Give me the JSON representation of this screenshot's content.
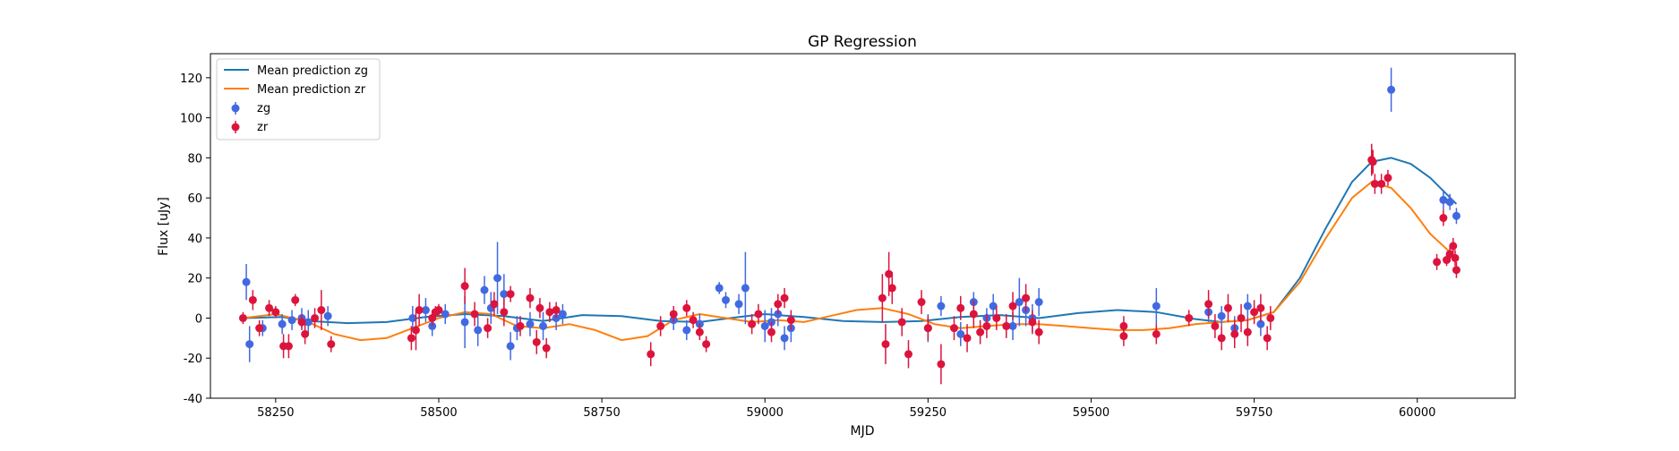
{
  "chart_data": {
    "type": "scatter",
    "title": "GP Regression",
    "xlabel": "MJD",
    "ylabel": "Flux [uJy]",
    "xlim": [
      58150,
      60150
    ],
    "ylim": [
      -40,
      132
    ],
    "xticks": [
      58250,
      58500,
      58750,
      59000,
      59250,
      59500,
      59750,
      60000
    ],
    "yticks": [
      -40,
      -20,
      0,
      20,
      40,
      60,
      80,
      100,
      120
    ],
    "grid": false,
    "legend_position": "top-left",
    "series": [
      {
        "name": "Mean prediction zg",
        "kind": "line",
        "color": "#1f77b4",
        "x": [
          58200,
          58260,
          58300,
          58360,
          58420,
          58480,
          58540,
          58600,
          58660,
          58720,
          58780,
          58840,
          58900,
          58960,
          59000,
          59060,
          59120,
          59180,
          59240,
          59300,
          59360,
          59420,
          59480,
          59540,
          59600,
          59660,
          59700,
          59740,
          59780,
          59820,
          59860,
          59900,
          59930,
          59960,
          59990,
          60020,
          60060
        ],
        "y": [
          0,
          0.5,
          -1.5,
          -2.5,
          -2,
          0.5,
          2,
          1,
          -1.5,
          1.5,
          1,
          -1.5,
          -2,
          0.5,
          2,
          0.5,
          -1.5,
          -2,
          -1.5,
          0.5,
          1.5,
          0,
          2.5,
          4,
          3,
          -0.5,
          -2,
          -1,
          3,
          20,
          45,
          68,
          78,
          80,
          77,
          70,
          57
        ]
      },
      {
        "name": "Mean prediction zr",
        "kind": "line",
        "color": "#ff7f0e",
        "x": [
          58200,
          58250,
          58300,
          58340,
          58380,
          58420,
          58460,
          58500,
          58540,
          58580,
          58620,
          58660,
          58700,
          58740,
          58780,
          58820,
          58860,
          58900,
          58940,
          58980,
          59020,
          59060,
          59100,
          59140,
          59180,
          59220,
          59260,
          59300,
          59340,
          59380,
          59420,
          59460,
          59500,
          59540,
          59580,
          59620,
          59660,
          59700,
          59740,
          59780,
          59820,
          59860,
          59900,
          59930,
          59960,
          59990,
          60020,
          60060
        ],
        "y": [
          0,
          2,
          -2,
          -8,
          -11,
          -10,
          -5,
          0,
          3,
          2,
          -4,
          -5,
          -3,
          -6,
          -11,
          -9,
          -1,
          2,
          0,
          -2,
          -1,
          -2,
          1,
          4,
          5,
          2,
          -3,
          -5,
          -4,
          -3,
          -3,
          -4,
          -5,
          -6,
          -6,
          -5,
          -3,
          -2,
          -1,
          3,
          18,
          40,
          60,
          68,
          65,
          55,
          42,
          30
        ]
      },
      {
        "name": "zg",
        "kind": "errorbar",
        "color": "#4169e1",
        "x": [
          58205,
          58210,
          58230,
          58260,
          58275,
          58290,
          58300,
          58330,
          58460,
          58480,
          58490,
          58510,
          58540,
          58560,
          58570,
          58580,
          58590,
          58600,
          58610,
          58620,
          58640,
          58660,
          58680,
          58690,
          58860,
          58880,
          58900,
          58930,
          58940,
          58960,
          58970,
          59000,
          59010,
          59020,
          59030,
          59040,
          59250,
          59270,
          59300,
          59320,
          59340,
          59350,
          59380,
          59390,
          59400,
          59410,
          59420,
          59600,
          59680,
          59700,
          59720,
          59740,
          59760,
          59960,
          60040,
          60050,
          60060
        ],
        "y": [
          18,
          -13,
          -5,
          -3,
          -1,
          0,
          -2,
          1,
          0,
          4,
          -4,
          2,
          -2,
          -6,
          14,
          5,
          20,
          12,
          -14,
          -5,
          -3,
          -4,
          0,
          2,
          -1,
          -6,
          -3,
          15,
          9,
          7,
          15,
          -4,
          -2,
          2,
          -10,
          -5,
          -5,
          6,
          -8,
          8,
          0,
          6,
          -4,
          8,
          4,
          0,
          8,
          6,
          3,
          1,
          -5,
          6,
          -3,
          114,
          59,
          58,
          51
        ],
        "err": [
          9,
          9,
          4,
          5,
          5,
          5,
          6,
          5,
          6,
          6,
          5,
          5,
          13,
          8,
          7,
          8,
          18,
          10,
          7,
          6,
          6,
          7,
          6,
          5,
          5,
          5,
          5,
          3,
          4,
          5,
          18,
          8,
          7,
          6,
          6,
          7,
          7,
          5,
          6,
          5,
          5,
          6,
          7,
          12,
          8,
          7,
          7,
          9,
          5,
          5,
          6,
          6,
          6,
          11,
          5,
          4,
          4
        ]
      },
      {
        "name": "zr",
        "kind": "errorbar",
        "color": "#dc143c",
        "x": [
          58200,
          58215,
          58225,
          58240,
          58250,
          58262,
          58270,
          58280,
          58290,
          58295,
          58310,
          58320,
          58335,
          58458,
          58465,
          58470,
          58490,
          58495,
          58500,
          58540,
          58555,
          58575,
          58585,
          58600,
          58610,
          58625,
          58640,
          58650,
          58655,
          58665,
          58670,
          58680,
          58825,
          58840,
          58860,
          58880,
          58890,
          58900,
          58910,
          58980,
          58990,
          59010,
          59020,
          59030,
          59040,
          59180,
          59185,
          59190,
          59195,
          59210,
          59220,
          59240,
          59250,
          59270,
          59290,
          59300,
          59310,
          59320,
          59330,
          59340,
          59355,
          59370,
          59380,
          59400,
          59410,
          59420,
          59550,
          59550,
          59600,
          59650,
          59680,
          59690,
          59700,
          59710,
          59720,
          59730,
          59740,
          59750,
          59760,
          59770,
          59775,
          59930,
          59932,
          59935,
          59945,
          59955,
          60030,
          60040,
          60045,
          60050,
          60055,
          60058,
          60060
        ],
        "y": [
          0,
          9,
          -5,
          5,
          3,
          -14,
          -14,
          9,
          -2,
          -8,
          0,
          4,
          -13,
          -10,
          -6,
          4,
          0,
          3,
          4,
          16,
          2,
          -5,
          7,
          3,
          12,
          -4,
          10,
          -12,
          5,
          -15,
          3,
          4,
          -18,
          -4,
          2,
          5,
          -1,
          -7,
          -13,
          -3,
          2,
          -7,
          7,
          10,
          -1,
          10,
          -13,
          22,
          15,
          -2,
          -18,
          8,
          -5,
          -23,
          -5,
          5,
          -10,
          2,
          -7,
          -4,
          0,
          -4,
          6,
          10,
          -2,
          -7,
          -4,
          -9,
          -8,
          0,
          7,
          -4,
          -10,
          5,
          -8,
          0,
          -7,
          3,
          5,
          -10,
          0,
          79,
          78,
          67,
          67,
          70,
          28,
          50,
          29,
          32,
          36,
          30,
          24
        ],
        "err": [
          3,
          5,
          4,
          4,
          3,
          6,
          6,
          3,
          4,
          5,
          5,
          10,
          4,
          6,
          10,
          8,
          4,
          3,
          3,
          9,
          6,
          5,
          6,
          7,
          4,
          5,
          5,
          6,
          5,
          5,
          5,
          4,
          6,
          5,
          4,
          4,
          4,
          4,
          4,
          5,
          5,
          5,
          5,
          5,
          5,
          12,
          10,
          11,
          8,
          7,
          7,
          6,
          6,
          10,
          6,
          6,
          7,
          7,
          6,
          6,
          6,
          6,
          7,
          7,
          6,
          6,
          5,
          5,
          5,
          4,
          7,
          6,
          6,
          7,
          7,
          7,
          7,
          6,
          7,
          6,
          6,
          8,
          6,
          5,
          5,
          4,
          4,
          4,
          3,
          4,
          4,
          4,
          4
        ]
      }
    ]
  }
}
